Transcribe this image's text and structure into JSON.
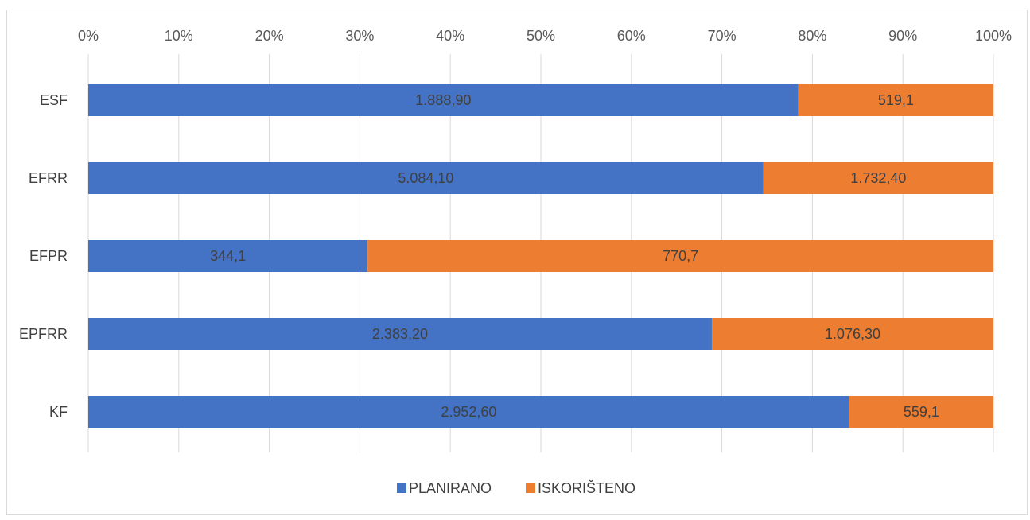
{
  "chart_data": {
    "type": "bar",
    "orientation": "horizontal",
    "stacked": "percent",
    "categories": [
      "ESF",
      "EFRR",
      "EFPR",
      "EPFRR",
      "KF"
    ],
    "series": [
      {
        "name": "PLANIRANO",
        "color": "#4472C4",
        "values": [
          1888.9,
          5084.1,
          344.1,
          2383.2,
          2952.6
        ],
        "labels": [
          "1.888,90",
          "5.084,10",
          "344,1",
          "2.383,20",
          "2.952,60"
        ]
      },
      {
        "name": "ISKORIŠTENO",
        "color": "#ED7D31",
        "values": [
          519.1,
          1732.4,
          770.7,
          1076.3,
          559.1
        ],
        "labels": [
          "519,1",
          "1.732,40",
          "770,7",
          "1.076,30",
          "559,1"
        ]
      }
    ],
    "x_ticks": [
      "0%",
      "10%",
      "20%",
      "30%",
      "40%",
      "50%",
      "60%",
      "70%",
      "80%",
      "90%",
      "100%"
    ],
    "xlim": [
      0,
      100
    ],
    "x_axis_position": "top",
    "grid": true,
    "legend_position": "bottom",
    "title": "",
    "xlabel": "",
    "ylabel": ""
  }
}
